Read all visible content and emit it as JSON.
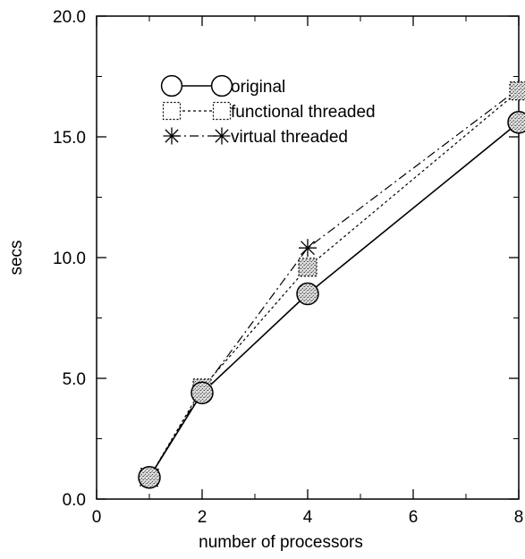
{
  "chart_data": {
    "type": "line",
    "title": "",
    "xlabel": "number of processors",
    "ylabel": "secs",
    "xlim": [
      0,
      8
    ],
    "ylim": [
      0,
      20
    ],
    "xticks": [
      0,
      2,
      4,
      6,
      8
    ],
    "yticks": [
      0,
      5,
      10,
      15,
      20
    ],
    "xtick_labels": [
      "0",
      "2",
      "4",
      "6",
      "8"
    ],
    "ytick_labels": [
      "0.0",
      "5.0",
      "10.0",
      "15.0",
      "20.0"
    ],
    "grid": false,
    "legend_position": "top-left",
    "series": [
      {
        "name": "original",
        "marker": "circle",
        "line_style": "solid",
        "x": [
          1,
          2,
          4,
          8
        ],
        "y": [
          0.9,
          4.4,
          8.5,
          15.6
        ]
      },
      {
        "name": "functional threaded",
        "marker": "square",
        "line_style": "dotted",
        "x": [
          1,
          2,
          4,
          8
        ],
        "y": [
          0.9,
          4.6,
          9.6,
          16.9
        ]
      },
      {
        "name": "virtual threaded",
        "marker": "asterisk",
        "line_style": "dashdot",
        "x": [
          1,
          2,
          4,
          8
        ],
        "y": [
          0.9,
          4.5,
          10.4,
          17.0
        ]
      }
    ]
  }
}
